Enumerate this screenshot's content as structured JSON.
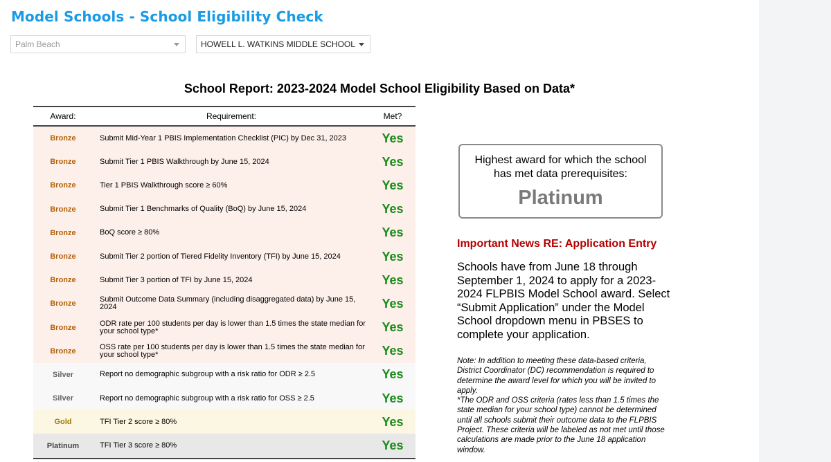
{
  "app": {
    "title": "Model Schools - School Eligibility Check"
  },
  "filters": {
    "district": "Palm Beach",
    "school": "HOWELL L. WATKINS MIDDLE SCHOOL"
  },
  "report": {
    "title": "School Report: 2023-2024 Model School Eligibility Based on Data*",
    "headers": {
      "award": "Award:",
      "requirement": "Requirement:",
      "met": "Met?"
    },
    "rows": [
      {
        "award": "Bronze",
        "requirement": "Submit Mid-Year 1 PBIS Implementation Checklist (PIC) by Dec 31, 2023",
        "met": "Yes"
      },
      {
        "award": "Bronze",
        "requirement": "Submit Tier 1 PBIS Walkthrough by June 15, 2024",
        "met": "Yes"
      },
      {
        "award": "Bronze",
        "requirement": "Tier 1 PBIS Walkthrough score ≥ 60%",
        "met": "Yes"
      },
      {
        "award": "Bronze",
        "requirement": "Submit Tier 1 Benchmarks of Quality (BoQ) by June 15, 2024",
        "met": "Yes"
      },
      {
        "award": "Bronze",
        "requirement": "BoQ score ≥ 80%",
        "met": "Yes"
      },
      {
        "award": "Bronze",
        "requirement": "Submit Tier 2 portion of Tiered Fidelity Inventory (TFI) by June 15, 2024",
        "met": "Yes"
      },
      {
        "award": "Bronze",
        "requirement": "Submit Tier 3 portion of TFI by June 15, 2024",
        "met": "Yes"
      },
      {
        "award": "Bronze",
        "requirement": "Submit Outcome Data Summary (including disaggregated data) by June 15, 2024",
        "met": "Yes"
      },
      {
        "award": "Bronze",
        "requirement": "ODR rate per 100 students per day is lower than 1.5 times the state median for your school type*",
        "met": "Yes"
      },
      {
        "award": "Bronze",
        "requirement": "OSS rate per 100 students per day is lower than 1.5 times the state median for your school type*",
        "met": "Yes"
      },
      {
        "award": "Silver",
        "requirement": "Report no demographic subgroup with a risk ratio for ODR ≥ 2.5",
        "met": "Yes"
      },
      {
        "award": "Silver",
        "requirement": "Report no demographic subgroup with a risk ratio for OSS ≥ 2.5",
        "met": "Yes"
      },
      {
        "award": "Gold",
        "requirement": "TFI Tier 2 score ≥ 80%",
        "met": "Yes"
      },
      {
        "award": "Platinum",
        "requirement": "TFI Tier 3 score ≥ 80%",
        "met": "Yes"
      }
    ]
  },
  "highest_award": {
    "label": "Highest award for which the school has met data prerequisites:",
    "value": "Platinum"
  },
  "news": {
    "title": "Important News RE: Application Entry",
    "body": "Schools have from June 18 through September 1, 2024 to apply for a 2023-2024 FLPBIS Model School award. Select “Submit Application” under the Model School dropdown menu in PBSES to complete your application."
  },
  "note": {
    "line1": "Note: In addition to meeting these data-based criteria, District Coordinator (DC) recommendation is required to determine the award level for which you will be invited to apply.",
    "line2": "*The ODR and OSS criteria (rates less than 1.5 times the state median for your school type) cannot be determined until all schools submit their outcome data to the FLPBIS Project. These criteria will be labeled as not met until those calculations are made prior to the June 18 application window."
  },
  "colors": {
    "title": "#1a9be6",
    "yes": "#1a8c1a",
    "bronze": "#b45f06",
    "news_title": "#b30000"
  }
}
